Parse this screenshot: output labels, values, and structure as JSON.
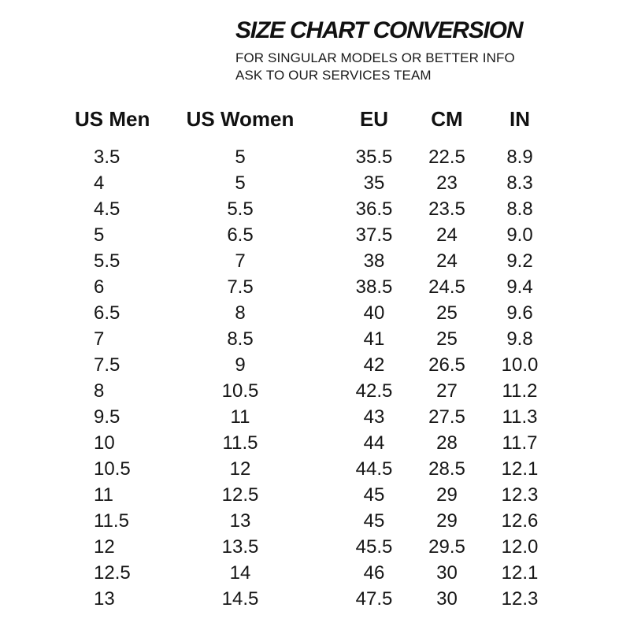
{
  "header": {
    "title": "SIZE CHART CONVERSION",
    "subtitle_line1": "FOR SINGULAR MODELS OR BETTER INFO",
    "subtitle_line2": "ASK TO OUR SERVICES TEAM"
  },
  "chart_data": {
    "type": "table",
    "title": "SIZE CHART CONVERSION",
    "columns": [
      "US Men",
      "US Women",
      "EU",
      "CM",
      "IN"
    ],
    "rows": [
      [
        "3.5",
        "5",
        "35.5",
        "22.5",
        "8.9"
      ],
      [
        "4",
        "5",
        "35",
        "23",
        "8.3"
      ],
      [
        "4.5",
        "5.5",
        "36.5",
        "23.5",
        "8.8"
      ],
      [
        "5",
        "6.5",
        "37.5",
        "24",
        "9.0"
      ],
      [
        "5.5",
        "7",
        "38",
        "24",
        "9.2"
      ],
      [
        "6",
        "7.5",
        "38.5",
        "24.5",
        "9.4"
      ],
      [
        "6.5",
        "8",
        "40",
        "25",
        "9.6"
      ],
      [
        "7",
        "8.5",
        "41",
        "25",
        "9.8"
      ],
      [
        "7.5",
        "9",
        "42",
        "26.5",
        "10.0"
      ],
      [
        "8",
        "10.5",
        "42.5",
        "27",
        "11.2"
      ],
      [
        "9.5",
        "11",
        "43",
        "27.5",
        "11.3"
      ],
      [
        "10",
        "11.5",
        "44",
        "28",
        "11.7"
      ],
      [
        "10.5",
        "12",
        "44.5",
        "28.5",
        "12.1"
      ],
      [
        "11",
        "12.5",
        "45",
        "29",
        "12.3"
      ],
      [
        "11.5",
        "13",
        "45",
        "29",
        "12.6"
      ],
      [
        "12",
        "13.5",
        "45.5",
        "29.5",
        "12.0"
      ],
      [
        "12.5",
        "14",
        "46",
        "30",
        "12.1"
      ],
      [
        "13",
        "14.5",
        "47.5",
        "30",
        "12.3"
      ]
    ]
  },
  "colors": {
    "text": "#131313",
    "background": "#ffffff"
  }
}
